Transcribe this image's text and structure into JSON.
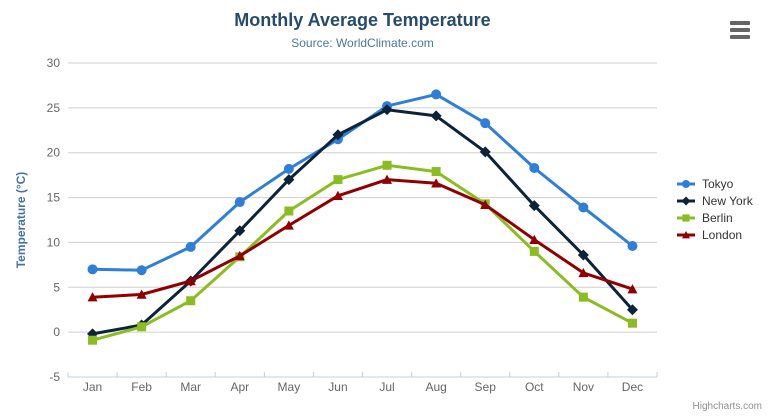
{
  "chart_data": {
    "type": "line",
    "title": "Monthly Average Temperature",
    "subtitle": "Source: WorldClimate.com",
    "xlabel": "",
    "ylabel": "Temperature (°C)",
    "categories": [
      "Jan",
      "Feb",
      "Mar",
      "Apr",
      "May",
      "Jun",
      "Jul",
      "Aug",
      "Sep",
      "Oct",
      "Nov",
      "Dec"
    ],
    "ylim": [
      -5,
      30
    ],
    "ytick_step": 5,
    "grid": true,
    "legend_position": "right",
    "series": [
      {
        "name": "Tokyo",
        "color": "#2f7ed8",
        "marker": "circle",
        "values": [
          7.0,
          6.9,
          9.5,
          14.5,
          18.2,
          21.5,
          25.2,
          26.5,
          23.3,
          18.3,
          13.9,
          9.6
        ]
      },
      {
        "name": "New York",
        "color": "#0d233a",
        "marker": "diamond",
        "values": [
          -0.2,
          0.8,
          5.7,
          11.3,
          17.0,
          22.0,
          24.8,
          24.1,
          20.1,
          14.1,
          8.6,
          2.5
        ]
      },
      {
        "name": "Berlin",
        "color": "#8bbc21",
        "marker": "square",
        "values": [
          -0.9,
          0.6,
          3.5,
          8.4,
          13.5,
          17.0,
          18.6,
          17.9,
          14.3,
          9.0,
          3.9,
          1.0
        ]
      },
      {
        "name": "London",
        "color": "#910000",
        "marker": "triangle",
        "values": [
          3.9,
          4.2,
          5.7,
          8.5,
          11.9,
          15.2,
          17.0,
          16.6,
          14.2,
          10.3,
          6.6,
          4.8
        ]
      }
    ]
  },
  "context_menu": {
    "icon": "hamburger-menu-icon"
  },
  "credits": {
    "label": "Highcharts.com"
  },
  "colors": {
    "title": "#274b6d",
    "subtitle": "#4d759e",
    "grid": "#d0d0d0",
    "axis_line": "#c0d0e0",
    "tick_label": "#666666",
    "axis_title": "#4572a7",
    "legend_text": "#333333",
    "credits_text": "#909090"
  }
}
